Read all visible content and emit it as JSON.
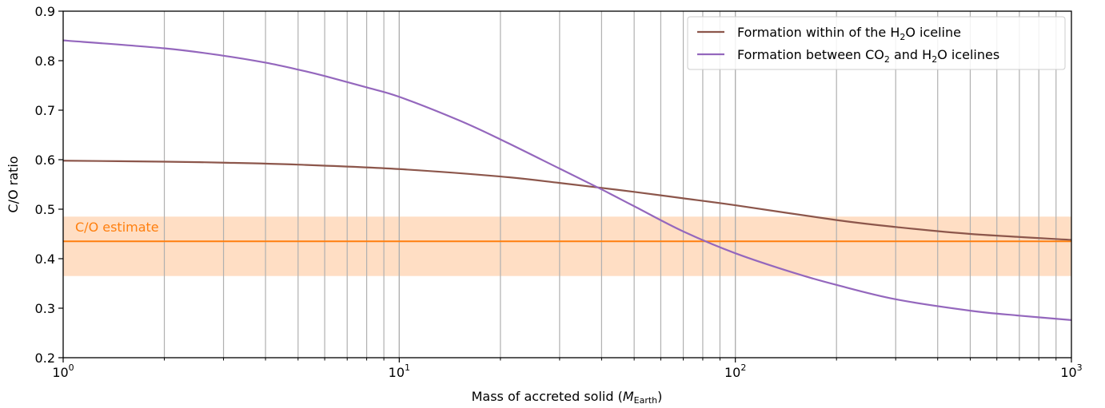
{
  "chart_data": {
    "type": "line",
    "xlabel_prefix": "Mass of accreted solid (",
    "xlabel_var": "M",
    "xlabel_sub": "Earth",
    "xlabel_suffix": ")",
    "ylabel": "C/O ratio",
    "xscale": "log",
    "xlim": [
      1,
      1000
    ],
    "ylim": [
      0.2,
      0.9
    ],
    "x_ticks": [
      {
        "base": "10",
        "exp": "0"
      },
      {
        "base": "10",
        "exp": "1"
      },
      {
        "base": "10",
        "exp": "2"
      },
      {
        "base": "10",
        "exp": "3"
      }
    ],
    "y_ticks": [
      "0.2",
      "0.3",
      "0.4",
      "0.5",
      "0.6",
      "0.7",
      "0.8",
      "0.9"
    ],
    "grid": "vertical lines at x minor and major ticks",
    "legend_position": "top-right",
    "series": [
      {
        "name_parts": [
          "Formation within of the H",
          "2",
          "O iceline"
        ],
        "color": "#8c564b",
        "x": [
          1,
          2,
          3,
          5,
          10,
          20,
          30,
          40,
          50,
          70,
          100,
          200,
          300,
          500,
          1000
        ],
        "y": [
          0.598,
          0.596,
          0.594,
          0.59,
          0.581,
          0.566,
          0.553,
          0.543,
          0.535,
          0.522,
          0.508,
          0.478,
          0.464,
          0.45,
          0.438
        ]
      },
      {
        "name_parts": [
          "Formation between CO",
          "2",
          " and H",
          "2",
          "O icelines"
        ],
        "color": "#9467bd",
        "x": [
          1,
          2,
          3,
          4,
          5,
          6,
          8,
          10,
          15,
          20,
          30,
          40,
          50,
          70,
          100,
          150,
          200,
          300,
          500,
          700,
          1000
        ],
        "y": [
          0.841,
          0.825,
          0.81,
          0.796,
          0.782,
          0.769,
          0.746,
          0.727,
          0.68,
          0.641,
          0.582,
          0.54,
          0.506,
          0.455,
          0.411,
          0.371,
          0.347,
          0.318,
          0.295,
          0.285,
          0.276
        ]
      }
    ],
    "estimate": {
      "label": "C/O estimate",
      "value": 0.435,
      "band": [
        0.365,
        0.485
      ],
      "line_color": "#ff7f0e",
      "band_color": "#ffdec4"
    }
  }
}
